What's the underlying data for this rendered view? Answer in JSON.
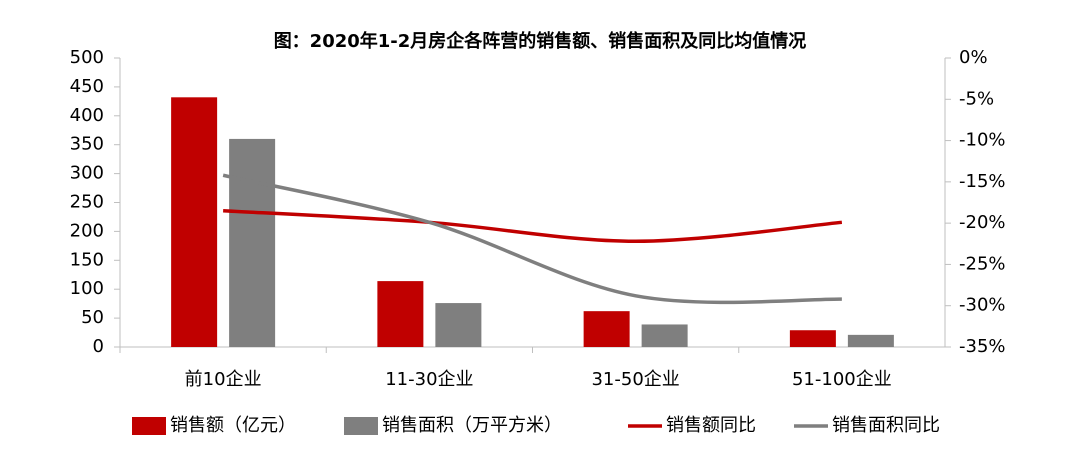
{
  "chart_data": {
    "type": "bar",
    "title": "图：2020年1-2月房企各阵营的销售额、销售面积及同比均值情况",
    "categories": [
      "前10企业",
      "11-30企业",
      "31-50企业",
      "51-100企业"
    ],
    "series": [
      {
        "name": "销售额（亿元）",
        "type": "bar",
        "color": "#c00000",
        "values": [
          432,
          114,
          62,
          29
        ]
      },
      {
        "name": "销售面积（万平方米）",
        "type": "bar",
        "color": "#7f7f7f",
        "values": [
          360,
          76,
          39,
          21
        ]
      },
      {
        "name": "销售额同比",
        "type": "line",
        "axis": "y2",
        "color": "#c00000",
        "values": [
          -18.5,
          -19.9,
          -22.2,
          -19.9
        ]
      },
      {
        "name": "销售面积同比",
        "type": "line",
        "axis": "y2",
        "color": "#7f7f7f",
        "values": [
          -14.2,
          -19.9,
          -28.8,
          -29.2
        ]
      }
    ],
    "ylim": [
      0,
      500
    ],
    "yticks": [
      0,
      50,
      100,
      150,
      200,
      250,
      300,
      350,
      400,
      450,
      500
    ],
    "y2lim": [
      -35,
      0
    ],
    "y2ticks": [
      {
        "value": 0,
        "label": "0%"
      },
      {
        "value": -5,
        "label": "-5%"
      },
      {
        "value": -10,
        "label": "-10%"
      },
      {
        "value": -15,
        "label": "-15%"
      },
      {
        "value": -20,
        "label": "-20%"
      },
      {
        "value": -25,
        "label": "-25%"
      },
      {
        "value": -30,
        "label": "-30%"
      },
      {
        "value": -35,
        "label": "-35%"
      }
    ],
    "legend": "bottom"
  }
}
